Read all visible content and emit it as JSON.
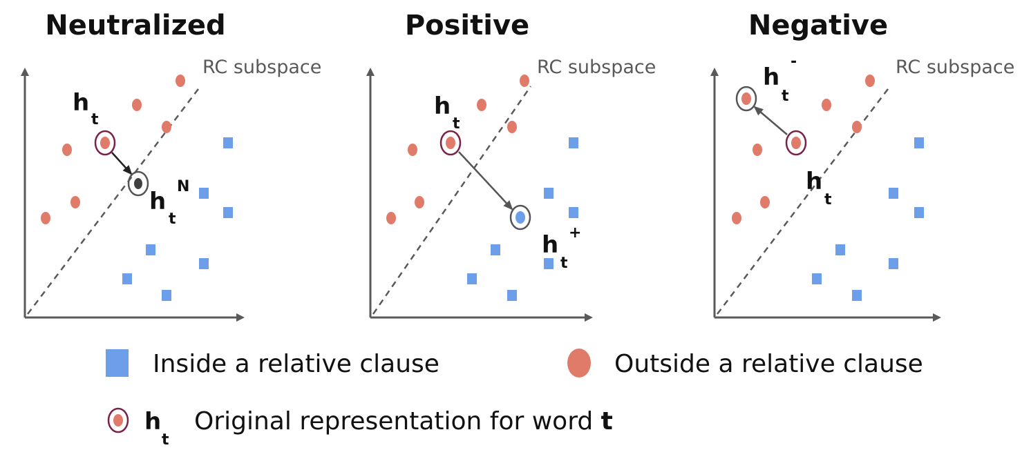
{
  "colors": {
    "axis": "#595959",
    "inside_square": "#6c9eea",
    "outside_dot": "#e07b6a",
    "highlight_ring": "#7b2147",
    "target_ring": "#555555",
    "neutral_dot": "#404040",
    "arrow": "#333333",
    "arrow_light": "#666666",
    "text": "#111111"
  },
  "panels": [
    {
      "title": "Neutralized",
      "subspace_label": "RC subspace",
      "original_label": {
        "main": "h",
        "sub": "t",
        "sup": ""
      },
      "target_label": {
        "main": "h",
        "sub": "t",
        "sup": "N"
      },
      "target_kind": "neutral",
      "arrow_icon": "arrow-down-right-icon"
    },
    {
      "title": "Positive",
      "subspace_label": "RC subspace",
      "original_label": {
        "main": "h",
        "sub": "t",
        "sup": ""
      },
      "target_label": {
        "main": "h",
        "sub": "t",
        "sup": "+"
      },
      "target_kind": "inside",
      "arrow_icon": "arrow-down-right-icon"
    },
    {
      "title": "Negative",
      "subspace_label": "RC subspace",
      "original_label": {
        "main": "h",
        "sub": "t",
        "sup": ""
      },
      "target_label": {
        "main": "h",
        "sub": "t",
        "sup": "-"
      },
      "target_kind": "outside",
      "arrow_icon": "arrow-up-left-icon"
    }
  ],
  "legend": {
    "inside": {
      "icon": "blue-square-icon",
      "text": "Inside a relative clause"
    },
    "outside": {
      "icon": "orange-dot-icon",
      "text": "Outside a relative clause"
    },
    "original": {
      "icon": "circled-dot-icon",
      "symbol_main": "h",
      "symbol_sub": "t",
      "text_prefix": "Original representation for word ",
      "text_bold": "t"
    }
  }
}
